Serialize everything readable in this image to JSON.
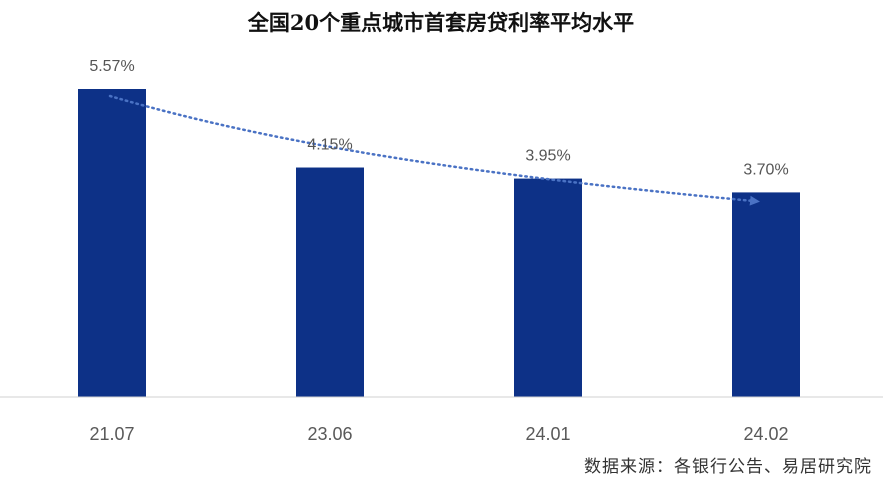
{
  "chart_data": {
    "type": "bar",
    "title": "全国20个重点城市首套房贷利率平均水平",
    "categories": [
      "21.07",
      "23.06",
      "24.01",
      "24.02"
    ],
    "values": [
      5.57,
      4.15,
      3.95,
      3.7
    ],
    "value_labels": [
      "5.57%",
      "4.15%",
      "3.95%",
      "3.70%"
    ],
    "ylim": [
      0,
      5.57
    ],
    "grid": false,
    "legend": "none",
    "trend_line": "dotted-arrow",
    "source": "数据来源：各银行公告、易居研究院"
  },
  "colors": {
    "bar": "#0d3187",
    "trend": "#4a72c4",
    "axis": "#d0d0d0"
  }
}
